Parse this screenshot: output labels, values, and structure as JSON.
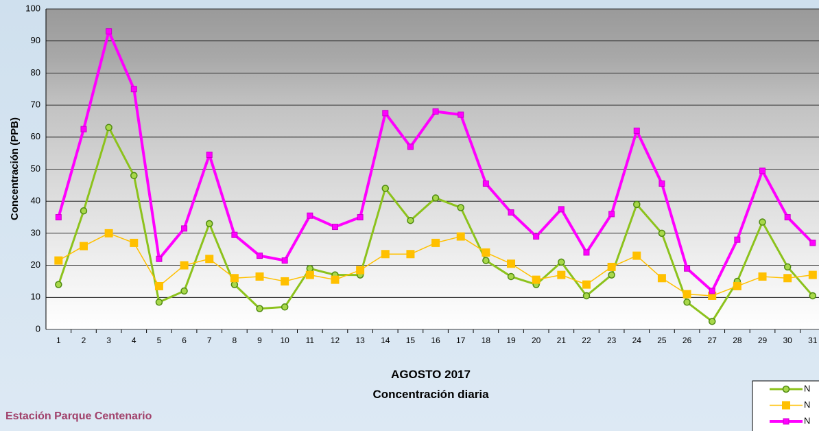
{
  "chart_data": {
    "type": "line",
    "title": "AGOSTO 2017",
    "subtitle": "Concentración diaria",
    "annotation": "Estación Parque Centenario",
    "y_label": "Concentración  (PPB)",
    "categories": [
      "1",
      "2",
      "3",
      "4",
      "5",
      "6",
      "7",
      "8",
      "9",
      "10",
      "11",
      "12",
      "13",
      "14",
      "15",
      "16",
      "17",
      "18",
      "19",
      "20",
      "21",
      "22",
      "23",
      "24",
      "25",
      "26",
      "27",
      "28",
      "29",
      "30",
      "31"
    ],
    "series": [
      {
        "name": "N",
        "color": "#8cc21c",
        "marker": "circle",
        "values": [
          14,
          37,
          63,
          48,
          8.5,
          12,
          33,
          14,
          6.5,
          7,
          19,
          17,
          17,
          44,
          34,
          41,
          38,
          21.5,
          16.5,
          14,
          21,
          10.5,
          17,
          39,
          30,
          8.5,
          2.5,
          15,
          33.5,
          19.5,
          10.5
        ]
      },
      {
        "name": "N",
        "color": "#ffc000",
        "marker": "square",
        "values": [
          21.5,
          26,
          30,
          27,
          13.5,
          20,
          22,
          16,
          16.5,
          15,
          17,
          15.5,
          18.5,
          23.5,
          23.5,
          27,
          29,
          24,
          20.5,
          15.5,
          17,
          14,
          19.5,
          23,
          16,
          11,
          10.5,
          13.5,
          16.5,
          16,
          17
        ]
      },
      {
        "name": "N",
        "color": "#ff00ff",
        "marker": "smallsquare",
        "values": [
          35,
          62.5,
          93,
          75,
          22,
          31.5,
          54.5,
          29.5,
          23,
          21.5,
          35.5,
          32,
          35,
          67.5,
          57,
          68,
          67,
          45.5,
          36.5,
          29,
          37.5,
          24,
          36,
          62,
          45.5,
          19,
          12,
          28,
          49.5,
          35,
          27
        ]
      }
    ],
    "ylim": [
      0,
      100
    ],
    "yticks": [
      0,
      10,
      20,
      30,
      40,
      50,
      60,
      70,
      80,
      90,
      100
    ],
    "grid": true
  }
}
